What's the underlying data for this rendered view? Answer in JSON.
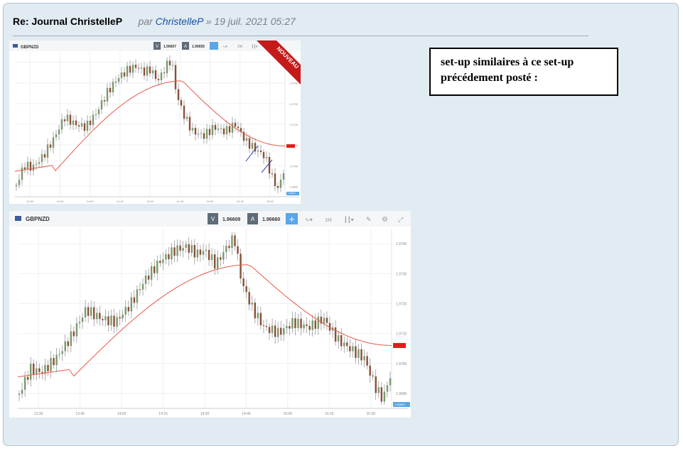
{
  "post": {
    "title": "Re: Journal ChristelleP",
    "by": "par",
    "author": "ChristelleP",
    "separator": "»",
    "date": "19 juil. 2021 05:27"
  },
  "note": {
    "line1": "set-up similaires à ce set-up",
    "line2": "précédement posté :"
  },
  "chart1": {
    "symbol": "GBPNZD",
    "v_label": "V",
    "bid": "1.96607",
    "a_label": "A",
    "ask": "1.96655",
    "timeframe": "1M",
    "badge": "NOUVEAU",
    "price_labels": [
      "1.9750",
      "1.9740",
      "1.9730",
      "1.9720",
      "1.9710",
      "1.9700",
      "1.9690"
    ],
    "time_labels": [
      "13:30",
      "13:45",
      "14:00",
      "14:15",
      "14:30",
      "14:45",
      "15:00",
      "15:15",
      "15:30"
    ],
    "current_price": "1.96607"
  },
  "chart2": {
    "symbol": "GBPNZD",
    "v_label": "V",
    "bid": "1.96609",
    "a_label": "A",
    "ask": "1.96660",
    "timeframe": "1M",
    "price_labels": [
      "1.9740",
      "1.9730",
      "1.9720",
      "1.9710",
      "1.9700",
      "1.9690"
    ],
    "time_labels": [
      "13:30",
      "13:45",
      "14:00",
      "14:15",
      "14:30",
      "14:45",
      "15:00",
      "15:15",
      "15:30"
    ],
    "current_price": "1.96609",
    "colors": {
      "up": "#7a9a6c",
      "down": "#8a4f38",
      "ma": "#e8584a",
      "price_tag": "#e21b1b",
      "last_tag": "#59a6e8"
    }
  }
}
